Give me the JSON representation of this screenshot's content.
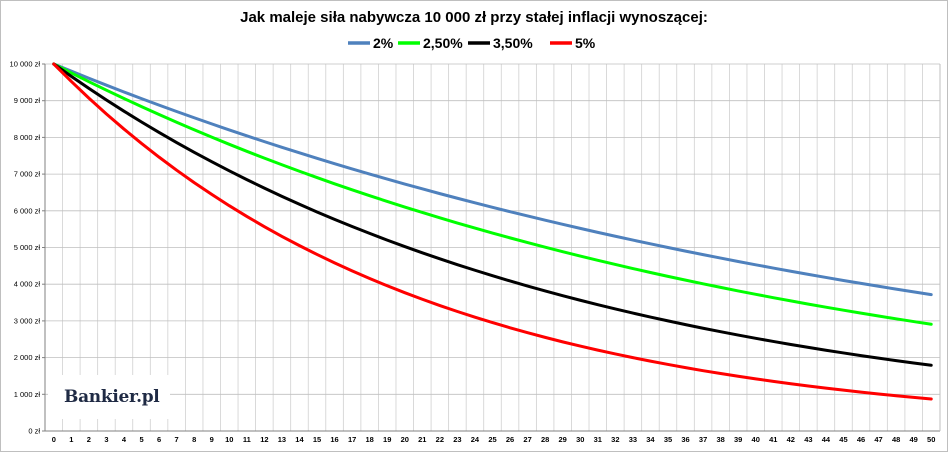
{
  "chart_data": {
    "type": "line",
    "title": "Jak maleje siła nabywcza 10 000 zł przy stałej inflacji wynoszącej:",
    "xlabel": "",
    "ylabel": "",
    "x": [
      0,
      1,
      2,
      3,
      4,
      5,
      6,
      7,
      8,
      9,
      10,
      11,
      12,
      13,
      14,
      15,
      16,
      17,
      18,
      19,
      20,
      21,
      22,
      23,
      24,
      25,
      26,
      27,
      28,
      29,
      30,
      31,
      32,
      33,
      34,
      35,
      36,
      37,
      38,
      39,
      40,
      41,
      42,
      43,
      44,
      45,
      46,
      47,
      48,
      49,
      50
    ],
    "x_tick_labels": [
      "0",
      "1",
      "2",
      "3",
      "4",
      "5",
      "6",
      "7",
      "8",
      "9",
      "10",
      "11",
      "12",
      "13",
      "14",
      "15",
      "16",
      "17",
      "18",
      "19",
      "20",
      "21",
      "22",
      "23",
      "24",
      "25",
      "26",
      "27",
      "28",
      "29",
      "30",
      "31",
      "32",
      "33",
      "34",
      "35",
      "36",
      "37",
      "38",
      "39",
      "40",
      "41",
      "42",
      "43",
      "44",
      "45",
      "46",
      "47",
      "48",
      "49",
      "50"
    ],
    "ylim": [
      0,
      10000
    ],
    "y_ticks": [
      0,
      1000,
      2000,
      3000,
      4000,
      5000,
      6000,
      7000,
      8000,
      9000,
      10000
    ],
    "y_tick_labels": [
      "0 zł",
      "1 000 zł",
      "2 000 zł",
      "3 000 zł",
      "4 000 zł",
      "5 000 zł",
      "6 000 zł",
      "7 000 zł",
      "8 000 zł",
      "9 000 zł",
      "10 000 zł"
    ],
    "grid": true,
    "legend_position": "top-center",
    "series": [
      {
        "name": "2%",
        "color": "#4f81bd",
        "values": [
          10000,
          9804,
          9612,
          9423,
          9238,
          9057,
          8880,
          8706,
          8535,
          8368,
          8203,
          8043,
          7885,
          7730,
          7579,
          7430,
          7284,
          7142,
          7002,
          6864,
          6730,
          6598,
          6468,
          6342,
          6217,
          6095,
          5976,
          5859,
          5744,
          5631,
          5521,
          5412,
          5306,
          5202,
          5100,
          5000,
          4902,
          4806,
          4712,
          4619,
          4529,
          4440,
          4353,
          4268,
          4184,
          4102,
          4022,
          3943,
          3865,
          3790,
          3715
        ]
      },
      {
        "name": "2,50%",
        "color": "#00ff00",
        "values": [
          10000,
          9756,
          9518,
          9286,
          9060,
          8839,
          8623,
          8413,
          8207,
          8007,
          7812,
          7621,
          7436,
          7254,
          7077,
          6905,
          6736,
          6572,
          6412,
          6255,
          6103,
          5954,
          5809,
          5667,
          5529,
          5394,
          5262,
          5134,
          5009,
          4887,
          4767,
          4651,
          4538,
          4427,
          4319,
          4214,
          4111,
          4011,
          3913,
          3817,
          3724,
          3633,
          3545,
          3458,
          3374,
          3292,
          3211,
          3133,
          3057,
          2982,
          2909
        ]
      },
      {
        "name": "3,50%",
        "color": "#000000",
        "values": [
          10000,
          9662,
          9335,
          9019,
          8714,
          8420,
          8135,
          7860,
          7594,
          7337,
          7089,
          6849,
          6618,
          6394,
          6178,
          5969,
          5767,
          5572,
          5384,
          5202,
          5026,
          4856,
          4692,
          4533,
          4380,
          4231,
          4088,
          3950,
          3817,
          3687,
          3563,
          3442,
          3326,
          3213,
          3105,
          3000,
          2898,
          2800,
          2706,
          2614,
          2526,
          2440,
          2358,
          2278,
          2201,
          2127,
          2055,
          1985,
          1918,
          1853,
          1791
        ]
      },
      {
        "name": "5%",
        "color": "#ff0000",
        "values": [
          10000,
          9524,
          9070,
          8638,
          8227,
          7835,
          7462,
          7107,
          6768,
          6446,
          6139,
          5847,
          5568,
          5303,
          5051,
          4810,
          4581,
          4363,
          4155,
          3957,
          3769,
          3589,
          3418,
          3256,
          3101,
          2953,
          2812,
          2678,
          2551,
          2429,
          2314,
          2204,
          2099,
          1999,
          1904,
          1813,
          1727,
          1644,
          1566,
          1491,
          1420,
          1353,
          1288,
          1227,
          1169,
          1113,
          1060,
          1009,
          961,
          916,
          872
        ]
      }
    ]
  },
  "watermark": {
    "text": "Bankier.pl"
  }
}
